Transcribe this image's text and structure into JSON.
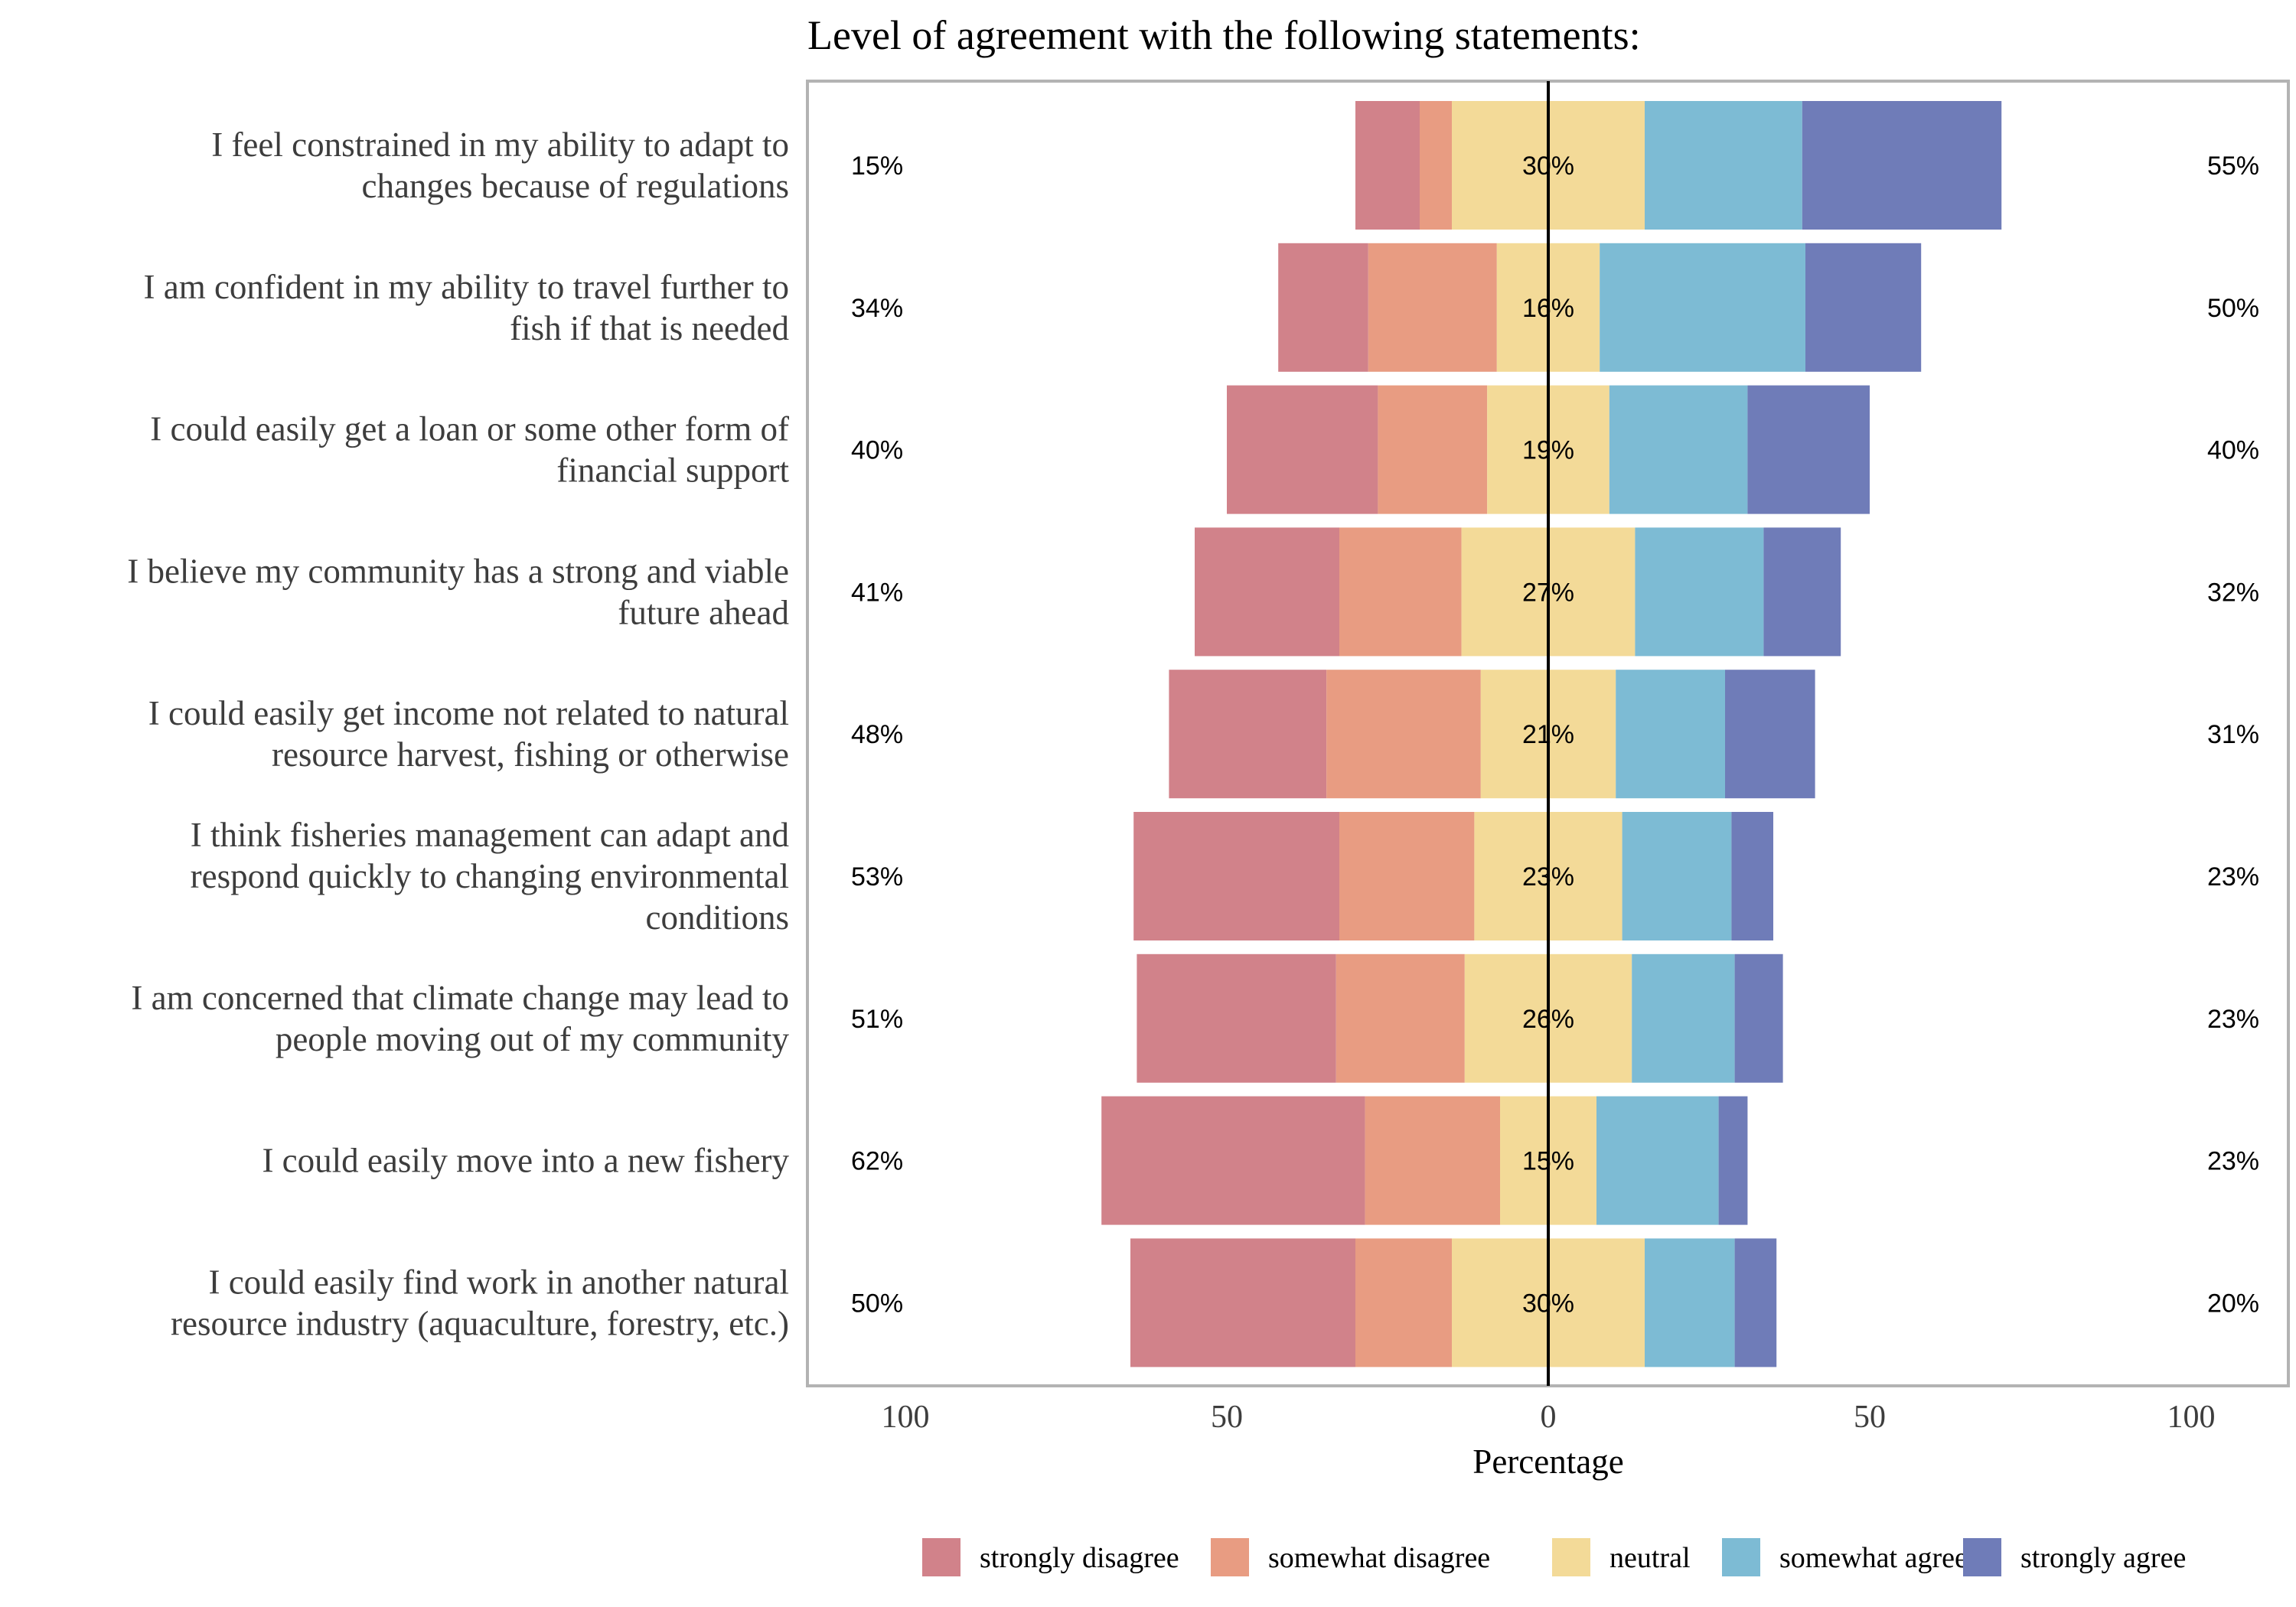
{
  "chart_data": {
    "type": "bar",
    "orientation": "horizontal-diverging-stacked",
    "title": "Level of agreement with the following statements:",
    "xlabel": "Percentage",
    "ylabel": "",
    "xlim": [
      -100,
      100
    ],
    "x_ticks": [
      -100,
      -50,
      0,
      50,
      100
    ],
    "x_tick_labels": [
      "100",
      "50",
      "0",
      "50",
      "100"
    ],
    "legend_position": "bottom",
    "grid": false,
    "levels": [
      {
        "name": "strongly disagree",
        "color": "#D1828A"
      },
      {
        "name": "somewhat disagree",
        "color": "#E89C82"
      },
      {
        "name": "neutral",
        "color": "#F3DA98"
      },
      {
        "name": "somewhat agree",
        "color": "#7DBBD4"
      },
      {
        "name": "strongly agree",
        "color": "#6F7CB8"
      }
    ],
    "categories": [
      {
        "label": [
          "I feel constrained in my ability to adapt to",
          "changes because of regulations"
        ],
        "values": [
          10,
          5,
          30,
          24.5,
          31
        ],
        "left_pct": "15%",
        "neutral_pct": "30%",
        "right_pct": "55%"
      },
      {
        "label": [
          "I am confident in my ability to travel further to",
          "fish if that is needed"
        ],
        "values": [
          14,
          20,
          16,
          32,
          18
        ],
        "left_pct": "34%",
        "neutral_pct": "16%",
        "right_pct": "50%"
      },
      {
        "label": [
          "I could easily get a loan or some other form of",
          "financial support"
        ],
        "values": [
          23.5,
          17,
          19,
          21.5,
          19
        ],
        "left_pct": "40%",
        "neutral_pct": "19%",
        "right_pct": "40%"
      },
      {
        "label": [
          "I believe my community has a strong and viable",
          "future ahead"
        ],
        "values": [
          22.5,
          19,
          27,
          20,
          12
        ],
        "left_pct": "41%",
        "neutral_pct": "27%",
        "right_pct": "32%"
      },
      {
        "label": [
          "I could easily get income not related to natural",
          "resource harvest, fishing or otherwise"
        ],
        "values": [
          24.5,
          24,
          21,
          17,
          14
        ],
        "left_pct": "48%",
        "neutral_pct": "21%",
        "right_pct": "31%"
      },
      {
        "label": [
          "I think fisheries management can adapt and",
          "respond quickly to changing environmental",
          "conditions"
        ],
        "values": [
          32,
          21,
          23,
          17,
          6.5
        ],
        "left_pct": "53%",
        "neutral_pct": "23%",
        "right_pct": "23%"
      },
      {
        "label": [
          "I am concerned that climate change may lead to",
          "people moving out of my community"
        ],
        "values": [
          31,
          20,
          26,
          16,
          7.5
        ],
        "left_pct": "51%",
        "neutral_pct": "26%",
        "right_pct": "23%"
      },
      {
        "label": [
          "I could easily move into a new fishery"
        ],
        "values": [
          41,
          21,
          15,
          19,
          4.5
        ],
        "left_pct": "62%",
        "neutral_pct": "15%",
        "right_pct": "23%"
      },
      {
        "label": [
          "I could easily find work in another natural",
          "resource industry (aquaculture, forestry, etc.)"
        ],
        "values": [
          35,
          15,
          30,
          14,
          6.5
        ],
        "left_pct": "50%",
        "neutral_pct": "30%",
        "right_pct": "20%"
      }
    ]
  }
}
